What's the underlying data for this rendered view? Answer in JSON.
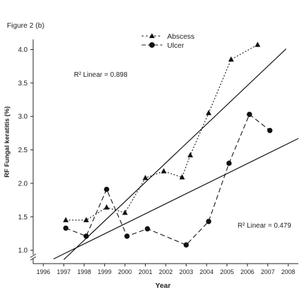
{
  "figure_label": "Figure 2 (b)",
  "chart_data": {
    "type": "line",
    "title": "",
    "xlabel": "Year",
    "ylabel": "RF Fungal keratitis (%)",
    "x_ticks": [
      "1996",
      "1997",
      "1998",
      "1999",
      "2000",
      "2001",
      "2002",
      "2003",
      "2004",
      "2005",
      "2006",
      "2007",
      "2008"
    ],
    "y_ticks": [
      "1.0",
      "1.5",
      "2.0",
      "2.5",
      "3.0",
      "3.5",
      "4.0"
    ],
    "xlim": [
      1995.5,
      2008.5
    ],
    "ylim": [
      0.8,
      4.15
    ],
    "grid": false,
    "legend_position": "top-center",
    "series": [
      {
        "name": "Abscess",
        "marker": "triangle",
        "dash": "dotted",
        "x": [
          1997.1,
          1998.1,
          1999.1,
          2000.0,
          2001.0,
          2001.9,
          2002.8,
          2003.2,
          2004.1,
          2005.2,
          2006.5
        ],
        "y": [
          1.45,
          1.45,
          1.64,
          1.56,
          2.08,
          2.18,
          2.09,
          2.42,
          3.05,
          3.85,
          4.07
        ]
      },
      {
        "name": "Ulcer",
        "marker": "circle",
        "dash": "dashed",
        "x": [
          1997.1,
          1998.1,
          1999.1,
          2000.1,
          2001.1,
          2003.0,
          2004.1,
          2005.1,
          2006.1,
          2007.1
        ],
        "y": [
          1.33,
          1.21,
          1.91,
          1.21,
          1.32,
          1.08,
          1.43,
          2.3,
          3.03,
          2.79
        ]
      }
    ],
    "trendlines": [
      {
        "series": "Abscess",
        "label": "R² Linear = 0.898",
        "x": [
          1997.0,
          2007.9
        ],
        "y": [
          0.86,
          4.01
        ]
      },
      {
        "series": "Ulcer",
        "label": "R² Linear = 0.479",
        "x": [
          1996.5,
          2008.5
        ],
        "y": [
          0.87,
          2.67
        ]
      }
    ],
    "annotations": [
      {
        "text": "R² Linear = 0.898"
      },
      {
        "text": "R² Linear = 0.479"
      }
    ]
  }
}
